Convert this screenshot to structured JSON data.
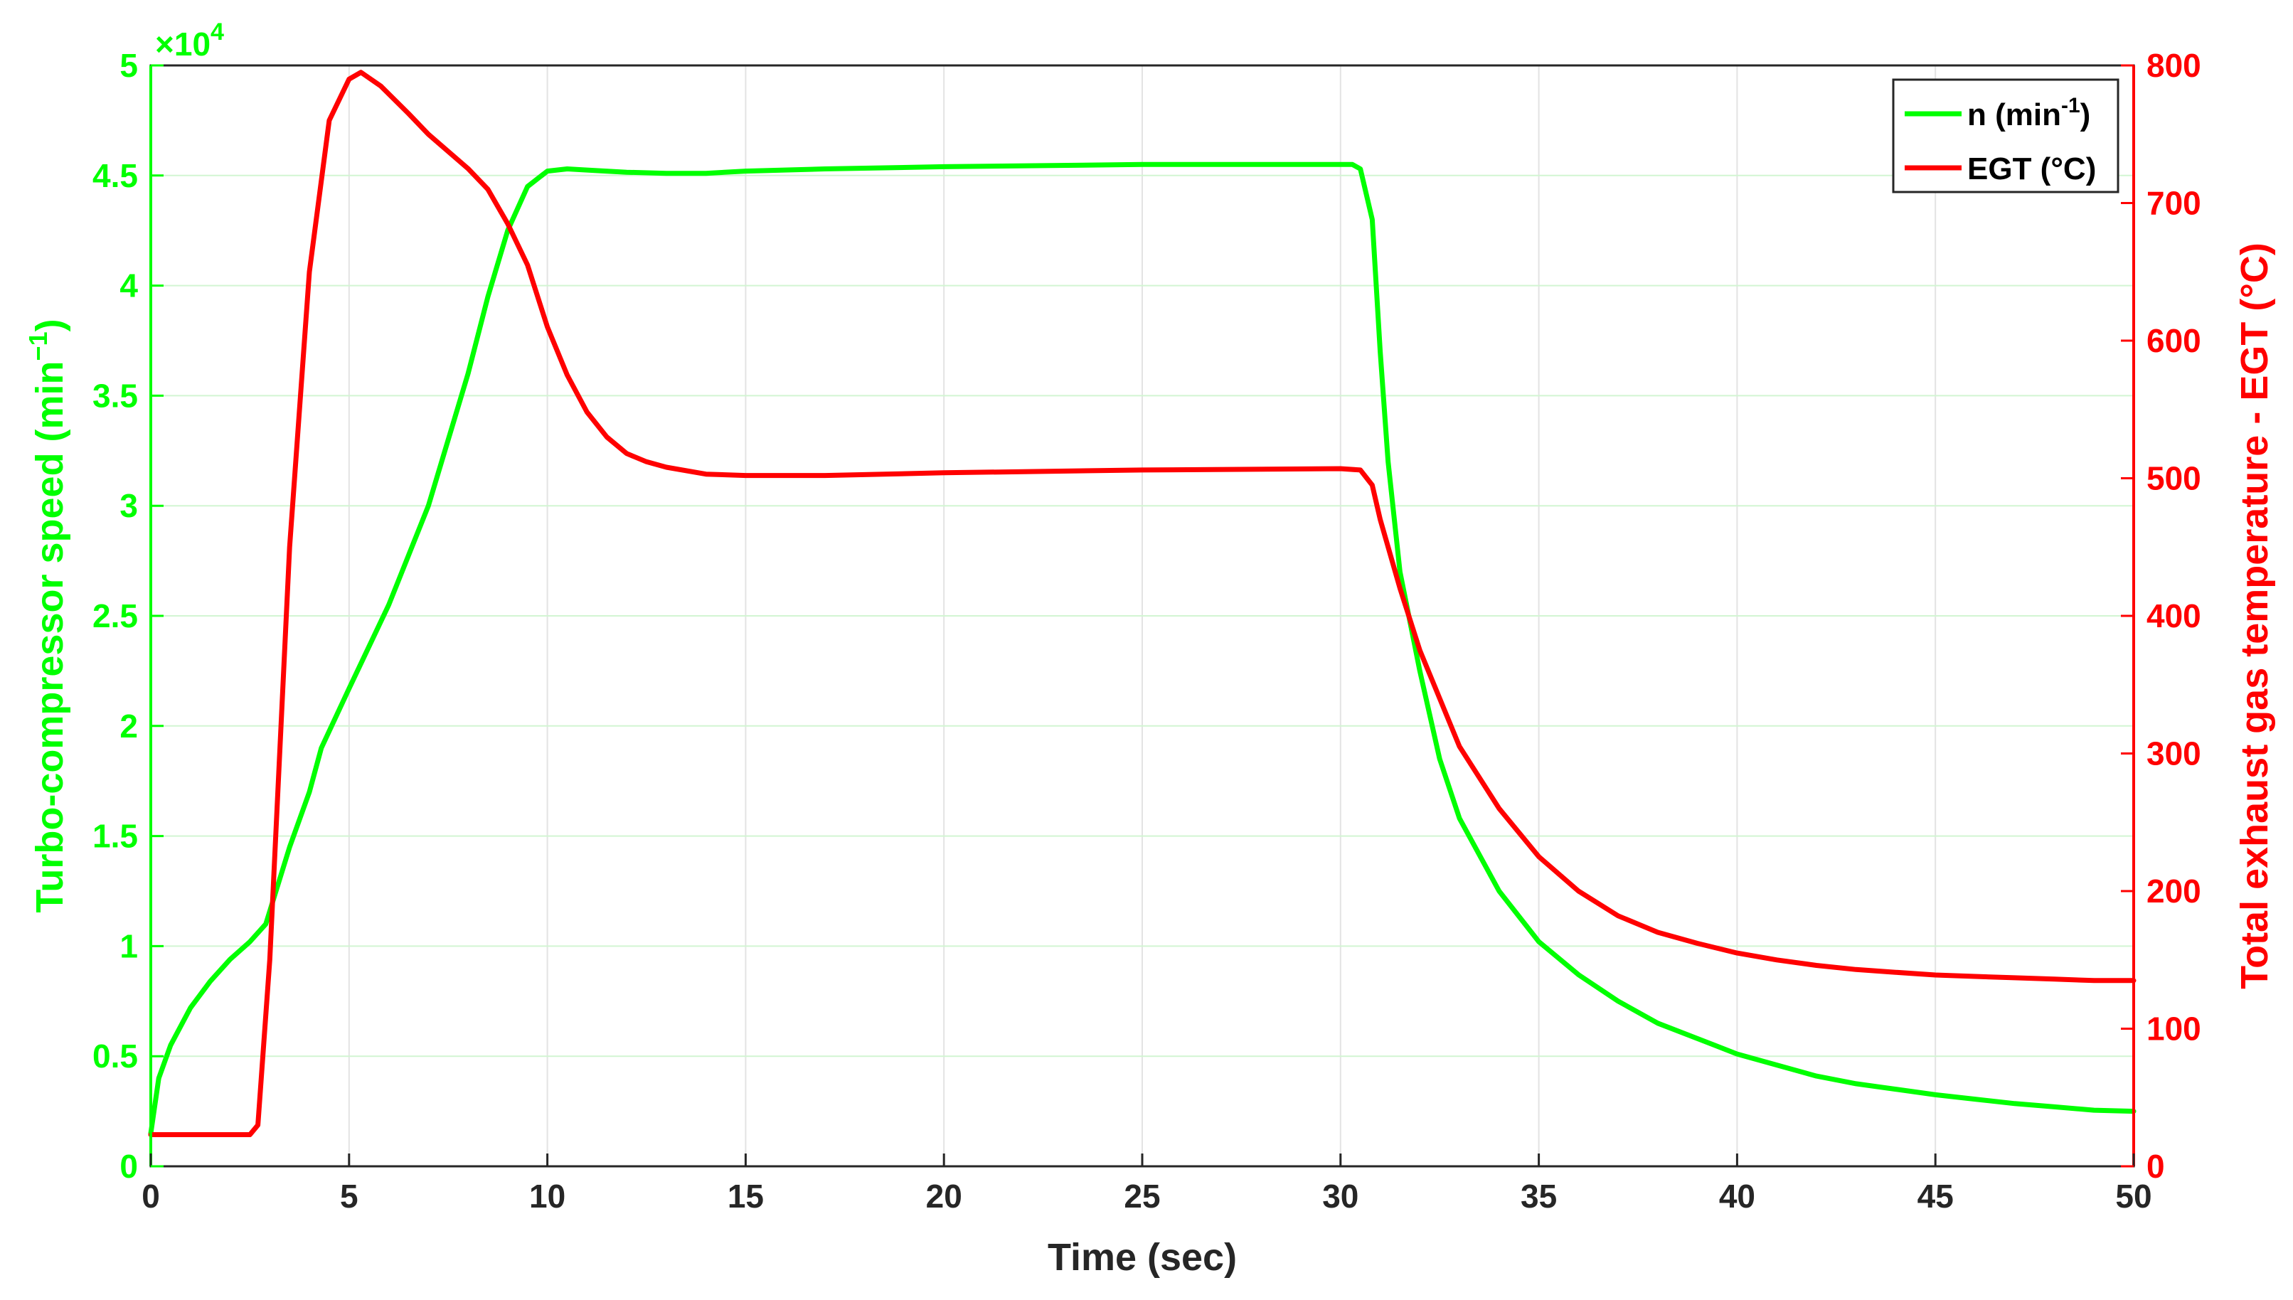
{
  "chart_data": {
    "type": "line",
    "xlabel": "Time (sec)",
    "ylabel_left": "Turbo-compressor speed (min",
    "ylabel_left_sup": "−1",
    "ylabel_left_close": ")",
    "ylabel_right": "Total exhaust gas temperature - EGT (°C)",
    "left_exponent_base": "×10",
    "left_exponent_power": "4",
    "xlim": [
      0,
      50
    ],
    "ylim_left": [
      0,
      50000
    ],
    "ylim_right": [
      0,
      800
    ],
    "x_ticks": [
      0,
      5,
      10,
      15,
      20,
      25,
      30,
      35,
      40,
      45,
      50
    ],
    "y_left_ticks": [
      "0",
      "0.5",
      "1",
      "1.5",
      "2",
      "2.5",
      "3",
      "3.5",
      "4",
      "4.5",
      "5"
    ],
    "y_right_ticks": [
      0,
      100,
      200,
      300,
      400,
      500,
      600,
      700,
      800
    ],
    "grid": true,
    "legend_position": "top-right",
    "colors": {
      "speed": "#00ff00",
      "egt": "#ff0000"
    },
    "series": [
      {
        "name": "n (min",
        "name_sup": "-1",
        "name_close": ")",
        "axis": "left",
        "color": "#00ff00",
        "points": [
          [
            0,
            1500
          ],
          [
            0.2,
            4000
          ],
          [
            0.5,
            5500
          ],
          [
            1,
            7200
          ],
          [
            1.5,
            8400
          ],
          [
            2,
            9400
          ],
          [
            2.5,
            10200
          ],
          [
            2.9,
            11000
          ],
          [
            3.5,
            14500
          ],
          [
            4,
            17000
          ],
          [
            4.3,
            19000
          ],
          [
            5,
            21700
          ],
          [
            6,
            25500
          ],
          [
            7,
            30000
          ],
          [
            8,
            36000
          ],
          [
            8.5,
            39500
          ],
          [
            9,
            42500
          ],
          [
            9.5,
            44500
          ],
          [
            10,
            45200
          ],
          [
            10.5,
            45300
          ],
          [
            11,
            45250
          ],
          [
            12,
            45150
          ],
          [
            13,
            45100
          ],
          [
            14,
            45100
          ],
          [
            15,
            45200
          ],
          [
            17,
            45300
          ],
          [
            20,
            45400
          ],
          [
            25,
            45500
          ],
          [
            30,
            45500
          ],
          [
            30.3,
            45500
          ],
          [
            30.5,
            45300
          ],
          [
            30.8,
            43000
          ],
          [
            31,
            37000
          ],
          [
            31.2,
            32000
          ],
          [
            31.5,
            27000
          ],
          [
            32,
            22500
          ],
          [
            32.5,
            18500
          ],
          [
            33,
            15800
          ],
          [
            34,
            12500
          ],
          [
            35,
            10200
          ],
          [
            36,
            8700
          ],
          [
            37,
            7500
          ],
          [
            38,
            6500
          ],
          [
            39,
            5800
          ],
          [
            40,
            5100
          ],
          [
            41,
            4600
          ],
          [
            42,
            4100
          ],
          [
            43,
            3750
          ],
          [
            44,
            3500
          ],
          [
            45,
            3250
          ],
          [
            46,
            3050
          ],
          [
            47,
            2850
          ],
          [
            48,
            2700
          ],
          [
            49,
            2550
          ],
          [
            50,
            2500
          ]
        ]
      },
      {
        "name": "EGT (°C)",
        "axis": "right",
        "color": "#ff0000",
        "points": [
          [
            0,
            23
          ],
          [
            2.5,
            23
          ],
          [
            2.7,
            30
          ],
          [
            3,
            150
          ],
          [
            3.5,
            450
          ],
          [
            4,
            650
          ],
          [
            4.5,
            760
          ],
          [
            5,
            790
          ],
          [
            5.3,
            795
          ],
          [
            5.8,
            785
          ],
          [
            6.5,
            765
          ],
          [
            7,
            750
          ],
          [
            8,
            725
          ],
          [
            8.5,
            710
          ],
          [
            9,
            685
          ],
          [
            9.5,
            655
          ],
          [
            10,
            610
          ],
          [
            10.5,
            575
          ],
          [
            11,
            548
          ],
          [
            11.5,
            530
          ],
          [
            12,
            518
          ],
          [
            12.5,
            512
          ],
          [
            13,
            508
          ],
          [
            14,
            503
          ],
          [
            15,
            502
          ],
          [
            17,
            502
          ],
          [
            20,
            504
          ],
          [
            25,
            506
          ],
          [
            30,
            507
          ],
          [
            30.5,
            506
          ],
          [
            30.8,
            495
          ],
          [
            31,
            470
          ],
          [
            31.5,
            420
          ],
          [
            32,
            375
          ],
          [
            32.5,
            340
          ],
          [
            33,
            305
          ],
          [
            34,
            260
          ],
          [
            35,
            225
          ],
          [
            36,
            200
          ],
          [
            37,
            182
          ],
          [
            38,
            170
          ],
          [
            39,
            162
          ],
          [
            40,
            155
          ],
          [
            41,
            150
          ],
          [
            42,
            146
          ],
          [
            43,
            143
          ],
          [
            44,
            141
          ],
          [
            45,
            139
          ],
          [
            46,
            138
          ],
          [
            47,
            137
          ],
          [
            48,
            136
          ],
          [
            49,
            135
          ],
          [
            50,
            135
          ]
        ]
      }
    ]
  }
}
